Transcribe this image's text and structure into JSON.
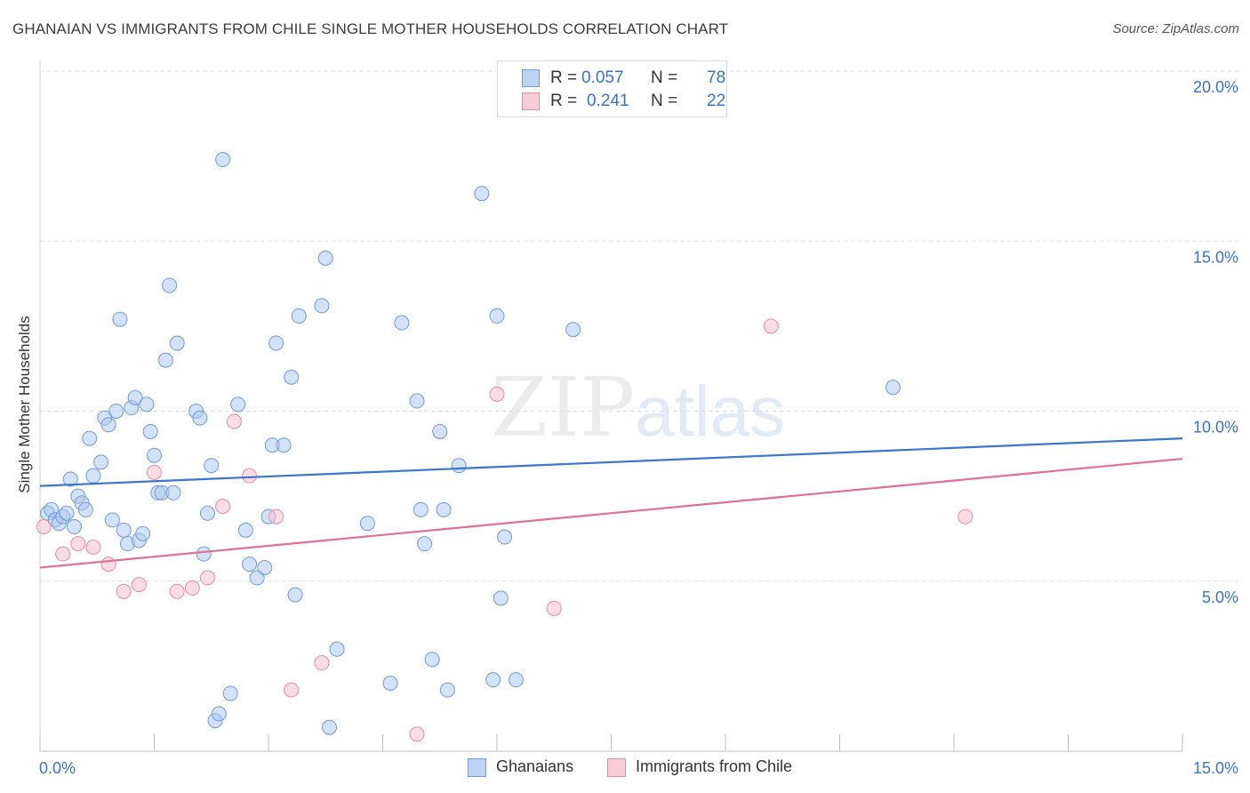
{
  "title": "GHANAIAN VS IMMIGRANTS FROM CHILE SINGLE MOTHER HOUSEHOLDS CORRELATION CHART",
  "source": "Source: ZipAtlas.com",
  "watermark": {
    "zip": "ZIP",
    "atlas": "atlas"
  },
  "legend": {
    "rows": [
      {
        "r_label": "R =",
        "r_value": "0.057",
        "n_label": "N =",
        "n_value": "78"
      },
      {
        "r_label": "R =",
        "r_value": "0.241",
        "n_label": "N =",
        "n_value": "22"
      }
    ]
  },
  "chart_data": {
    "type": "scatter",
    "ylabel": "Single Mother Households",
    "xlim": [
      0,
      15
    ],
    "ylim": [
      0,
      20
    ],
    "x_ticks": [
      "0.0%",
      "15.0%"
    ],
    "y_ticks": [
      {
        "value": 5,
        "label": "5.0%"
      },
      {
        "value": 10,
        "label": "10.0%"
      },
      {
        "value": 15,
        "label": "15.0%"
      },
      {
        "value": 20,
        "label": "20.0%"
      }
    ],
    "grid": "horizontal-dashed",
    "series": [
      {
        "name": "Ghanaians",
        "color": "#a9c6ef",
        "stroke": "#6f9bd8",
        "trend_color": "#3a77cc",
        "trend": [
          [
            0,
            7.8
          ],
          [
            15,
            9.2
          ]
        ],
        "points": [
          [
            0.1,
            7.0
          ],
          [
            0.15,
            7.1
          ],
          [
            0.2,
            6.8
          ],
          [
            0.25,
            6.7
          ],
          [
            0.3,
            6.9
          ],
          [
            0.35,
            7.0
          ],
          [
            0.4,
            8.0
          ],
          [
            0.45,
            6.6
          ],
          [
            0.5,
            7.5
          ],
          [
            0.55,
            7.3
          ],
          [
            0.6,
            7.1
          ],
          [
            0.65,
            9.2
          ],
          [
            0.7,
            8.1
          ],
          [
            0.8,
            8.5
          ],
          [
            0.85,
            9.8
          ],
          [
            0.9,
            9.6
          ],
          [
            0.95,
            6.8
          ],
          [
            1.0,
            10.0
          ],
          [
            1.05,
            12.7
          ],
          [
            1.1,
            6.5
          ],
          [
            1.15,
            6.1
          ],
          [
            1.2,
            10.1
          ],
          [
            1.25,
            10.4
          ],
          [
            1.3,
            6.2
          ],
          [
            1.35,
            6.4
          ],
          [
            1.4,
            10.2
          ],
          [
            1.45,
            9.4
          ],
          [
            1.5,
            8.7
          ],
          [
            1.55,
            7.6
          ],
          [
            1.6,
            7.6
          ],
          [
            1.65,
            11.5
          ],
          [
            1.7,
            13.7
          ],
          [
            1.75,
            7.6
          ],
          [
            1.8,
            12.0
          ],
          [
            2.05,
            10.0
          ],
          [
            2.1,
            9.8
          ],
          [
            2.15,
            5.8
          ],
          [
            2.2,
            7.0
          ],
          [
            2.25,
            8.4
          ],
          [
            2.3,
            0.9
          ],
          [
            2.35,
            1.1
          ],
          [
            2.4,
            17.4
          ],
          [
            2.5,
            1.7
          ],
          [
            2.6,
            10.2
          ],
          [
            2.7,
            6.5
          ],
          [
            2.75,
            5.5
          ],
          [
            2.85,
            5.1
          ],
          [
            2.95,
            5.4
          ],
          [
            3.0,
            6.9
          ],
          [
            3.05,
            9.0
          ],
          [
            3.1,
            12.0
          ],
          [
            3.2,
            9.0
          ],
          [
            3.3,
            11.0
          ],
          [
            3.35,
            4.6
          ],
          [
            3.4,
            12.8
          ],
          [
            3.7,
            13.1
          ],
          [
            3.75,
            14.5
          ],
          [
            3.8,
            0.7
          ],
          [
            3.9,
            3.0
          ],
          [
            4.3,
            6.7
          ],
          [
            4.6,
            2.0
          ],
          [
            4.75,
            12.6
          ],
          [
            4.95,
            10.3
          ],
          [
            5.0,
            7.1
          ],
          [
            5.05,
            6.1
          ],
          [
            5.15,
            2.7
          ],
          [
            5.25,
            9.4
          ],
          [
            5.3,
            7.1
          ],
          [
            5.35,
            1.8
          ],
          [
            5.5,
            8.4
          ],
          [
            5.8,
            16.4
          ],
          [
            5.95,
            2.1
          ],
          [
            6.0,
            12.8
          ],
          [
            6.05,
            4.5
          ],
          [
            6.1,
            6.3
          ],
          [
            6.25,
            2.1
          ],
          [
            7.0,
            12.4
          ],
          [
            11.2,
            10.7
          ]
        ]
      },
      {
        "name": "Immigrants from Chile",
        "color": "#f7bccb",
        "stroke": "#e58ba5",
        "trend_color": "#e0709a",
        "trend": [
          [
            0,
            5.4
          ],
          [
            15,
            8.6
          ]
        ],
        "points": [
          [
            0.05,
            6.6
          ],
          [
            0.3,
            5.8
          ],
          [
            0.5,
            6.1
          ],
          [
            0.7,
            6.0
          ],
          [
            0.9,
            5.5
          ],
          [
            1.1,
            4.7
          ],
          [
            1.3,
            4.9
          ],
          [
            1.5,
            8.2
          ],
          [
            1.8,
            4.7
          ],
          [
            2.0,
            4.8
          ],
          [
            2.2,
            5.1
          ],
          [
            2.4,
            7.2
          ],
          [
            2.55,
            9.7
          ],
          [
            2.75,
            8.1
          ],
          [
            3.1,
            6.9
          ],
          [
            3.3,
            1.8
          ],
          [
            3.7,
            2.6
          ],
          [
            4.95,
            0.5
          ],
          [
            6.0,
            10.5
          ],
          [
            6.75,
            4.2
          ],
          [
            9.6,
            12.5
          ],
          [
            12.15,
            6.9
          ]
        ]
      }
    ]
  }
}
